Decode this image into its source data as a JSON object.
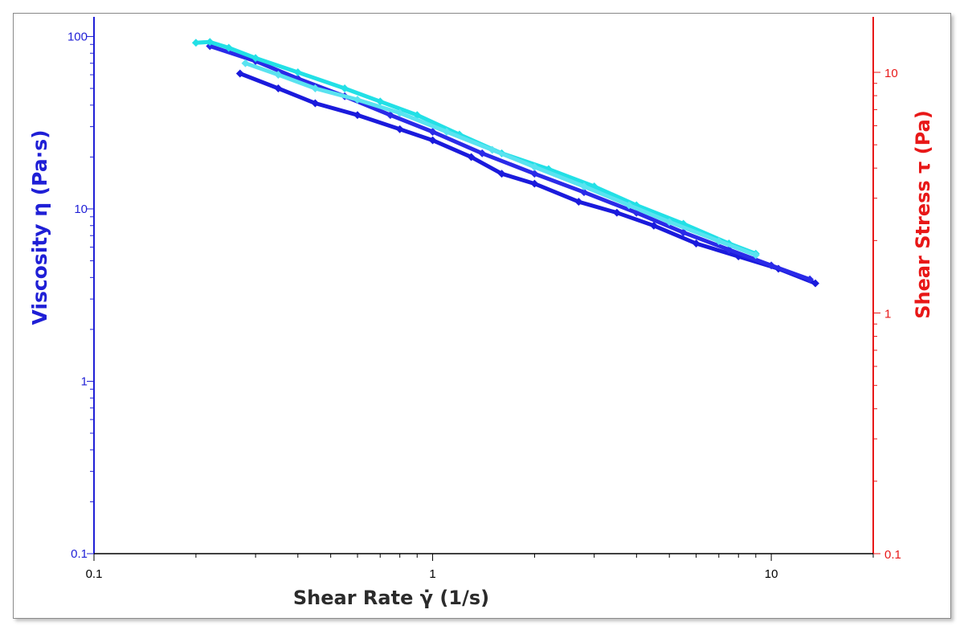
{
  "chart_data": {
    "type": "scatter",
    "title": "",
    "xlabel": "Shear Rate γ̇ (1/s)",
    "ylabel": "Viscosity η (Pa·s)",
    "y2label": "Shear Stress τ (Pa)",
    "xscale": "log",
    "yscale": "log",
    "y2scale": "log",
    "xlim": [
      0.1,
      20
    ],
    "ylim": [
      0.1,
      130
    ],
    "y2lim": [
      0.1,
      17
    ],
    "x_ticks": [
      {
        "v": 0.1,
        "label": "0.1"
      },
      {
        "v": 1,
        "label": "1"
      },
      {
        "v": 10,
        "label": "10"
      }
    ],
    "y_ticks": [
      {
        "v": 0.1,
        "label": "0.1"
      },
      {
        "v": 1,
        "label": "1"
      },
      {
        "v": 10,
        "label": "10"
      },
      {
        "v": 100,
        "label": "100"
      }
    ],
    "y2_ticks": [
      {
        "v": 0.1,
        "label": "0.1"
      },
      {
        "v": 1,
        "label": "1"
      },
      {
        "v": 10,
        "label": "10"
      }
    ],
    "grid": false,
    "legend": "none",
    "colors": {
      "y_axis": "#1f1fd6",
      "y2_axis": "#e81818",
      "x_axis": "#000000"
    },
    "series": [
      {
        "color": "#1a1adc",
        "axis": "y",
        "x": [
          0.27,
          0.35,
          0.45,
          0.6,
          0.8,
          1.0,
          1.3,
          1.6,
          2.0,
          2.7,
          3.5,
          4.5,
          6.0,
          8.0,
          10.5,
          13.5
        ],
        "y": [
          61,
          50,
          41,
          35,
          29,
          25,
          20,
          16,
          14,
          11,
          9.5,
          8.0,
          6.3,
          5.3,
          4.5,
          3.7
        ]
      },
      {
        "color": "#2a2ae8",
        "axis": "y",
        "x": [
          0.22,
          0.3,
          0.4,
          0.55,
          0.75,
          1.0,
          1.4,
          2.0,
          2.8,
          4.0,
          5.5,
          7.5,
          10.0,
          13.0
        ],
        "y": [
          88,
          72,
          57,
          45,
          35,
          28,
          21,
          16,
          12.5,
          9.5,
          7.3,
          5.8,
          4.7,
          3.9
        ]
      },
      {
        "color": "#22e0e6",
        "axis": "y",
        "x": [
          0.2,
          0.22,
          0.25,
          0.3,
          0.4,
          0.55,
          0.7,
          0.9,
          1.2,
          1.6,
          2.2,
          3.0,
          4.0,
          5.5,
          7.5,
          9.0
        ],
        "y": [
          92,
          93,
          86,
          75,
          62,
          50,
          42,
          35,
          27,
          21,
          17,
          13.5,
          10.5,
          8.2,
          6.3,
          5.5
        ]
      },
      {
        "color": "#5ae3f0",
        "axis": "y",
        "x": [
          0.28,
          0.35,
          0.45,
          0.6,
          0.8,
          1.1,
          1.5,
          2.0,
          2.8,
          3.8,
          5.0,
          7.0,
          9.0
        ],
        "y": [
          70,
          60,
          50,
          43,
          36,
          28,
          22,
          17.5,
          13.5,
          10.5,
          8.4,
          6.5,
          5.4
        ]
      }
    ]
  }
}
